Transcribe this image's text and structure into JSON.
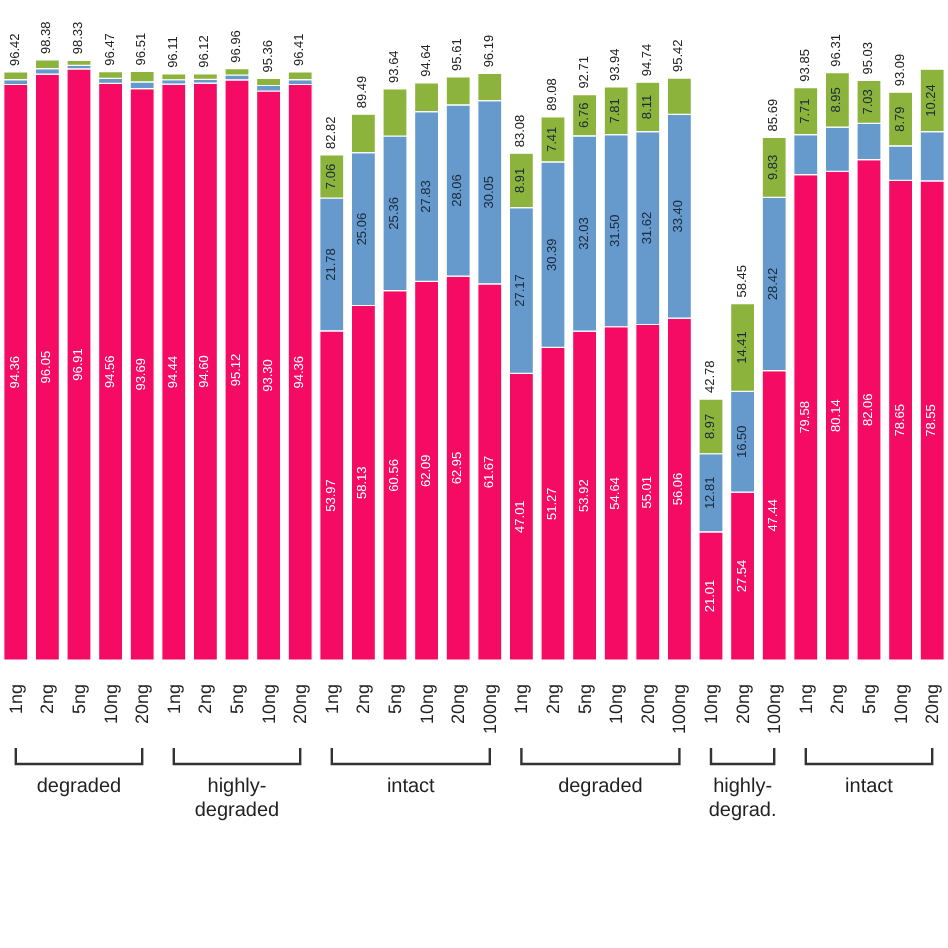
{
  "chart_data": {
    "type": "bar",
    "stacked": true,
    "categories": [
      "1ng",
      "2ng",
      "5ng",
      "10ng",
      "20ng",
      "1ng",
      "2ng",
      "5ng",
      "10ng",
      "20ng",
      "1ng",
      "2ng",
      "5ng",
      "10ng",
      "20ng",
      "100ng",
      "1ng",
      "2ng",
      "5ng",
      "10ng",
      "20ng",
      "100ng",
      "10ng",
      "20ng",
      "100ng",
      "1ng",
      "2ng",
      "5ng",
      "10ng",
      "20ng"
    ],
    "series": [
      {
        "color": "#f50a64",
        "values": [
          94.36,
          96.05,
          96.91,
          94.56,
          93.69,
          94.44,
          94.6,
          95.12,
          93.3,
          94.36,
          53.97,
          58.13,
          60.56,
          62.09,
          62.95,
          61.67,
          47.01,
          51.27,
          53.92,
          54.64,
          55.01,
          56.06,
          21.01,
          27.54,
          47.44,
          79.58,
          80.14,
          82.06,
          78.65,
          78.55
        ],
        "value_labels": [
          "94.36",
          "96.05",
          "96.91",
          "94.56",
          "93.69",
          "94.44",
          "94.60",
          "95.12",
          "93.30",
          "94.36",
          "53.97",
          "58.13",
          "60.56",
          "62.09",
          "62.95",
          "61.67",
          "47.01",
          "51.27",
          "53.92",
          "54.64",
          "55.01",
          "56.06",
          "21.01",
          "27.54",
          "47.44",
          "79.58",
          "80.14",
          "82.06",
          "78.65",
          "78.55"
        ]
      },
      {
        "color": "#6699cc",
        "values": [
          0.8,
          0.9,
          0.6,
          0.8,
          1.1,
          0.7,
          0.6,
          0.8,
          0.9,
          0.8,
          21.78,
          25.06,
          25.36,
          27.83,
          28.06,
          30.05,
          27.17,
          30.39,
          32.03,
          31.5,
          31.62,
          33.4,
          12.81,
          16.5,
          28.42,
          6.56,
          7.22,
          5.94,
          5.65,
          8.07
        ],
        "value_labels": [
          null,
          null,
          null,
          null,
          null,
          null,
          null,
          null,
          null,
          null,
          "21.78",
          "25.06",
          "25.36",
          "27.83",
          "28.06",
          "30.05",
          "27.17",
          "30.39",
          "32.03",
          "31.50",
          "31.62",
          "33.40",
          "12.81",
          "16.50",
          "28.42",
          null,
          null,
          null,
          null,
          null
        ]
      },
      {
        "color": "#8cb43c",
        "values": [
          1.26,
          1.43,
          0.82,
          1.11,
          1.72,
          0.97,
          0.92,
          1.04,
          1.16,
          1.25,
          7.06,
          6.3,
          7.72,
          4.72,
          4.6,
          4.47,
          8.91,
          7.41,
          6.76,
          7.81,
          8.11,
          5.96,
          8.97,
          14.41,
          9.83,
          7.71,
          8.95,
          7.03,
          8.79,
          10.24
        ],
        "value_labels": [
          null,
          null,
          null,
          null,
          null,
          null,
          null,
          null,
          null,
          null,
          "7.06",
          null,
          null,
          null,
          null,
          null,
          "8.91",
          "7.41",
          "6.76",
          "7.81",
          "8.11",
          null,
          "8.97",
          "14.41",
          "9.83",
          "7.71",
          "8.95",
          "7.03",
          "8.79",
          "10.24"
        ]
      }
    ],
    "totals": [
      "96.42",
      "98.38",
      "98.33",
      "96.47",
      "96.51",
      "96.11",
      "96.12",
      "96.96",
      "95.36",
      "96.41",
      "82.82",
      "89.49",
      "93.64",
      "94.64",
      "95.61",
      "96.19",
      "83.08",
      "89.08",
      "92.71",
      "93.94",
      "94.74",
      "95.42",
      "42.78",
      "58.45",
      "85.69",
      "93.85",
      "96.31",
      "95.03",
      "93.09",
      null
    ],
    "tick_labels": "x",
    "annotations": [
      "degraded",
      "highly-degraded",
      "intact",
      "degraded",
      "highly-degrad.",
      "intact"
    ]
  }
}
